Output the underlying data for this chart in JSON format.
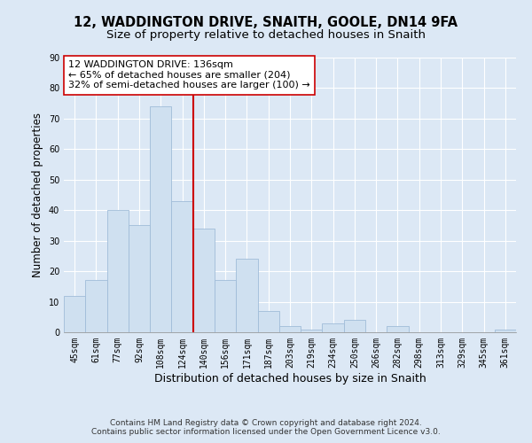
{
  "title1": "12, WADDINGTON DRIVE, SNAITH, GOOLE, DN14 9FA",
  "title2": "Size of property relative to detached houses in Snaith",
  "xlabel": "Distribution of detached houses by size in Snaith",
  "ylabel": "Number of detached properties",
  "bar_labels": [
    "45sqm",
    "61sqm",
    "77sqm",
    "92sqm",
    "108sqm",
    "124sqm",
    "140sqm",
    "156sqm",
    "171sqm",
    "187sqm",
    "203sqm",
    "219sqm",
    "234sqm",
    "250sqm",
    "266sqm",
    "282sqm",
    "298sqm",
    "313sqm",
    "329sqm",
    "345sqm",
    "361sqm"
  ],
  "bar_values": [
    12,
    17,
    40,
    35,
    74,
    43,
    34,
    17,
    24,
    7,
    2,
    1,
    3,
    4,
    0,
    2,
    0,
    0,
    0,
    0,
    1
  ],
  "bar_color": "#cfe0f0",
  "bar_edge_color": "#a0bcd8",
  "vline_color": "#cc0000",
  "ylim": [
    0,
    90
  ],
  "yticks": [
    0,
    10,
    20,
    30,
    40,
    50,
    60,
    70,
    80,
    90
  ],
  "annotation_line1": "12 WADDINGTON DRIVE: 136sqm",
  "annotation_line2": "← 65% of detached houses are smaller (204)",
  "annotation_line3": "32% of semi-detached houses are larger (100) →",
  "annotation_box_color": "#ffffff",
  "annotation_box_edge": "#cc0000",
  "footer1": "Contains HM Land Registry data © Crown copyright and database right 2024.",
  "footer2": "Contains public sector information licensed under the Open Government Licence v3.0.",
  "background_color": "#dce8f5",
  "plot_bg_color": "#dce8f5",
  "grid_color": "#ffffff",
  "title1_fontsize": 10.5,
  "title2_fontsize": 9.5,
  "xlabel_fontsize": 9,
  "ylabel_fontsize": 8.5,
  "tick_fontsize": 7,
  "annotation_fontsize": 8,
  "footer_fontsize": 6.5
}
